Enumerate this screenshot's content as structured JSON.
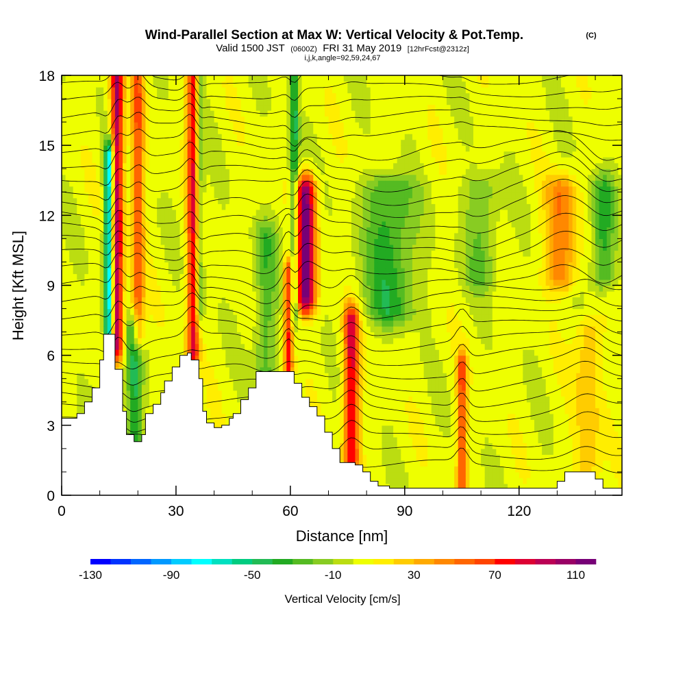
{
  "chart_data": {
    "type": "heatmap",
    "title": "Wind-Parallel Section at Max W: Vertical Velocity & Pot.Temp.",
    "title_mark": "(C)",
    "subtitle": {
      "valid": "Valid 1500 JST",
      "utc": "(0600Z)",
      "date": "FRI 31 May 2019",
      "forecast": "[12hrFcst@2312z]"
    },
    "subtitle2": "i,j,k,angle=92,59,24,67",
    "xlabel": "Distance [nm]",
    "ylabel": "Height [Kft MSL]",
    "xlim": [
      0,
      147
    ],
    "ylim": [
      0,
      18
    ],
    "xticks": [
      0,
      30,
      60,
      90,
      120
    ],
    "yticks": [
      0,
      3,
      6,
      9,
      12,
      15,
      18
    ],
    "xtick_labels": [
      "0",
      "30",
      "60",
      "90",
      "120"
    ],
    "ytick_labels": [
      "0",
      "3",
      "6",
      "9",
      "12",
      "15",
      "18"
    ],
    "colorbar": {
      "title": "Vertical Velocity [cm/s]",
      "min": -130,
      "max": 120,
      "step": 10,
      "labels": [
        "-130",
        "-90",
        "-50",
        "-10",
        "30",
        "70",
        "110"
      ],
      "label_values": [
        -130,
        -90,
        -50,
        -10,
        30,
        70,
        110
      ],
      "colors": [
        "#0000ff",
        "#0033ff",
        "#0066ff",
        "#0099ff",
        "#00ccff",
        "#00ffff",
        "#00e0c0",
        "#00cc80",
        "#22bb55",
        "#22aa22",
        "#55bb22",
        "#88cc22",
        "#bbdd11",
        "#eeff00",
        "#ffee00",
        "#ffcc00",
        "#ffaa00",
        "#ff8800",
        "#ff6600",
        "#ff4400",
        "#ff0000",
        "#dd0033",
        "#bb0055",
        "#990066",
        "#770077"
      ]
    },
    "terrain": [
      [
        0,
        3.3
      ],
      [
        3,
        3.3
      ],
      [
        4,
        3.5
      ],
      [
        6,
        4.0
      ],
      [
        8,
        4.6
      ],
      [
        10,
        5.8
      ],
      [
        11,
        6.9
      ],
      [
        13,
        6.9
      ],
      [
        14,
        5.4
      ],
      [
        16,
        3.6
      ],
      [
        17,
        2.6
      ],
      [
        19,
        2.3
      ],
      [
        21,
        2.6
      ],
      [
        22,
        3.5
      ],
      [
        24,
        3.9
      ],
      [
        26,
        4.4
      ],
      [
        27,
        4.9
      ],
      [
        29,
        5.5
      ],
      [
        31,
        6.0
      ],
      [
        33,
        6.1
      ],
      [
        34,
        5.8
      ],
      [
        36,
        5.0
      ],
      [
        37,
        3.6
      ],
      [
        38,
        3.1
      ],
      [
        40,
        2.9
      ],
      [
        42,
        3.0
      ],
      [
        44,
        3.3
      ],
      [
        45,
        3.5
      ],
      [
        47,
        4.1
      ],
      [
        49,
        4.6
      ],
      [
        51,
        5.3
      ],
      [
        53,
        5.3
      ],
      [
        59,
        5.3
      ],
      [
        61,
        4.8
      ],
      [
        63,
        4.2
      ],
      [
        65,
        3.8
      ],
      [
        67,
        3.4
      ],
      [
        69,
        2.7
      ],
      [
        71,
        2.0
      ],
      [
        73,
        1.4
      ],
      [
        75,
        1.4
      ],
      [
        77,
        1.3
      ],
      [
        79,
        1.0
      ],
      [
        81,
        0.6
      ],
      [
        83,
        0.4
      ],
      [
        86,
        0.3
      ],
      [
        100,
        0.3
      ],
      [
        113,
        0.3
      ],
      [
        128,
        0.3
      ],
      [
        130,
        0.6
      ],
      [
        132,
        1.0
      ],
      [
        138,
        1.0
      ],
      [
        140,
        0.7
      ],
      [
        142,
        0.3
      ],
      [
        145,
        0.3
      ],
      [
        147,
        0.5
      ]
    ],
    "updrafts": [
      {
        "x": 14.5,
        "zmin": 6.5,
        "zmax": 18,
        "w": 1.6,
        "v": 100
      },
      {
        "x": 20.0,
        "zmin": 7.0,
        "zmax": 18,
        "w": 1.6,
        "v": 55
      },
      {
        "x": 34.5,
        "zmin": 6.2,
        "zmax": 18,
        "w": 1.6,
        "v": 80
      },
      {
        "x": 59.5,
        "zmin": 5.5,
        "zmax": 9.5,
        "w": 1.2,
        "v": 70
      },
      {
        "x": 64.0,
        "zmin": 8.5,
        "zmax": 13.0,
        "w": 2.6,
        "v": 110
      },
      {
        "x": 76.0,
        "zmin": 1.6,
        "zmax": 7.5,
        "w": 2.0,
        "v": 80
      },
      {
        "x": 105.0,
        "zmin": 0.4,
        "zmax": 5.5,
        "w": 1.3,
        "v": 60
      },
      {
        "x": 131.0,
        "zmin": 9.5,
        "zmax": 13.0,
        "w": 4.0,
        "v": 45
      },
      {
        "x": 138.0,
        "zmin": 1.0,
        "zmax": 7.0,
        "w": 3.5,
        "v": 25
      }
    ],
    "downdrafts": [
      {
        "x": 12.5,
        "zmin": 6.5,
        "zmax": 14.5,
        "w": 1.3,
        "v": -95
      },
      {
        "x": 19.0,
        "zmin": 2.5,
        "zmax": 7.0,
        "w": 2.0,
        "v": -45
      },
      {
        "x": 36.0,
        "zmin": 8.0,
        "zmax": 18,
        "w": 1.2,
        "v": -40
      },
      {
        "x": 53.5,
        "zmin": 5.0,
        "zmax": 11.0,
        "w": 3.0,
        "v": -30
      },
      {
        "x": 61.0,
        "zmin": 8.0,
        "zmax": 18,
        "w": 1.2,
        "v": -50
      },
      {
        "x": 86.0,
        "zmin": 8.0,
        "zmax": 13.0,
        "w": 6.5,
        "v": -40
      },
      {
        "x": 110.0,
        "zmin": 9.5,
        "zmax": 13.0,
        "w": 4.5,
        "v": -25
      },
      {
        "x": 142.0,
        "zmin": 9.5,
        "zmax": 13.0,
        "w": 3.0,
        "v": -40
      }
    ]
  }
}
